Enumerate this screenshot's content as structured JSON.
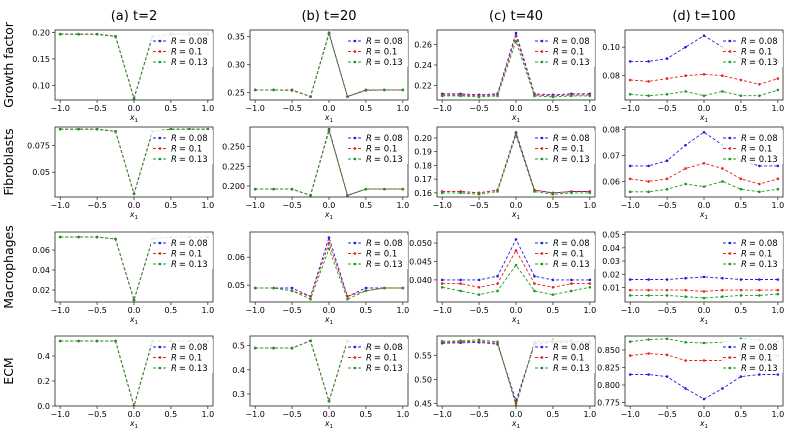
{
  "chart_data": {
    "type": "line",
    "columns": [
      "(a) t=2",
      "(b) t=20",
      "(c) t=40",
      "(d) t=100"
    ],
    "rows": [
      "Growth factor",
      "Fibroblasts",
      "Macrophages",
      "ECM"
    ],
    "x": [
      -1.0,
      -0.75,
      -0.5,
      -0.25,
      0.0,
      0.25,
      0.5,
      0.75,
      1.0
    ],
    "xlabel_main": "x",
    "xlabel_sub": "1",
    "xticks": [
      -1.0,
      -0.5,
      0.0,
      0.5,
      1.0
    ],
    "xtick_labels": [
      "−1.0",
      "−0.5",
      "0.0",
      "0.5",
      "1.0"
    ],
    "series_names": [
      "R = 0.08",
      "R = 0.1",
      "R = 0.13"
    ],
    "legend_symbol": "R",
    "legend_values": [
      "= 0.08",
      "= 0.1",
      "= 0.13"
    ],
    "series_colors": [
      "#1f1fe8",
      "#e8231f",
      "#1a9a1a"
    ],
    "legend_position": "top-right",
    "panels": [
      {
        "row": 0,
        "col": 0,
        "ylim": [
          0.072,
          0.205
        ],
        "yticks": [
          0.1,
          0.15,
          0.2
        ],
        "ytick_labels": [
          "0.10",
          "0.15",
          "0.20"
        ],
        "series": [
          [
            0.197,
            0.197,
            0.197,
            0.193,
            0.075,
            0.193,
            0.197,
            0.197,
            0.197
          ],
          [
            0.197,
            0.197,
            0.197,
            0.193,
            0.075,
            0.193,
            0.197,
            0.197,
            0.197
          ],
          [
            0.197,
            0.197,
            0.197,
            0.193,
            0.075,
            0.193,
            0.197,
            0.197,
            0.197
          ]
        ]
      },
      {
        "row": 0,
        "col": 1,
        "ylim": [
          0.237,
          0.362
        ],
        "yticks": [
          0.25,
          0.3,
          0.35
        ],
        "ytick_labels": [
          "0.25",
          "0.30",
          "0.35"
        ],
        "series": [
          [
            0.255,
            0.255,
            0.255,
            0.243,
            0.357,
            0.243,
            0.255,
            0.255,
            0.255
          ],
          [
            0.255,
            0.255,
            0.255,
            0.243,
            0.356,
            0.243,
            0.255,
            0.255,
            0.255
          ],
          [
            0.255,
            0.255,
            0.254,
            0.243,
            0.355,
            0.243,
            0.254,
            0.255,
            0.255
          ]
        ]
      },
      {
        "row": 0,
        "col": 2,
        "ylim": [
          0.206,
          0.274
        ],
        "yticks": [
          0.22,
          0.24,
          0.26
        ],
        "ytick_labels": [
          "0.22",
          "0.24",
          "0.26"
        ],
        "series": [
          [
            0.212,
            0.212,
            0.211,
            0.212,
            0.271,
            0.212,
            0.211,
            0.212,
            0.212
          ],
          [
            0.211,
            0.211,
            0.21,
            0.211,
            0.268,
            0.211,
            0.21,
            0.211,
            0.211
          ],
          [
            0.21,
            0.21,
            0.209,
            0.21,
            0.263,
            0.21,
            0.209,
            0.21,
            0.21
          ]
        ]
      },
      {
        "row": 0,
        "col": 3,
        "ylim": [
          0.063,
          0.112
        ],
        "yticks": [
          0.08,
          0.1
        ],
        "ytick_labels": [
          "0.08",
          "0.10"
        ],
        "series": [
          [
            0.09,
            0.09,
            0.092,
            0.1,
            0.108,
            0.1,
            0.092,
            0.09,
            0.09
          ],
          [
            0.077,
            0.076,
            0.078,
            0.08,
            0.081,
            0.08,
            0.077,
            0.074,
            0.078
          ],
          [
            0.067,
            0.066,
            0.067,
            0.069,
            0.066,
            0.069,
            0.066,
            0.066,
            0.07
          ]
        ]
      },
      {
        "row": 1,
        "col": 0,
        "ylim": [
          0.027,
          0.092
        ],
        "yticks": [
          0.05,
          0.075
        ],
        "ytick_labels": [
          "0.05",
          "0.075"
        ],
        "series": [
          [
            0.09,
            0.09,
            0.09,
            0.088,
            0.03,
            0.088,
            0.09,
            0.09,
            0.09
          ],
          [
            0.09,
            0.09,
            0.09,
            0.088,
            0.03,
            0.088,
            0.09,
            0.09,
            0.09
          ],
          [
            0.09,
            0.09,
            0.09,
            0.088,
            0.03,
            0.088,
            0.09,
            0.09,
            0.09
          ]
        ]
      },
      {
        "row": 1,
        "col": 1,
        "ylim": [
          0.186,
          0.275
        ],
        "yticks": [
          0.2,
          0.225,
          0.25
        ],
        "ytick_labels": [
          "0.200",
          "0.225",
          "0.250"
        ],
        "series": [
          [
            0.196,
            0.196,
            0.196,
            0.188,
            0.272,
            0.188,
            0.196,
            0.196,
            0.196
          ],
          [
            0.196,
            0.196,
            0.196,
            0.188,
            0.271,
            0.188,
            0.196,
            0.196,
            0.196
          ],
          [
            0.196,
            0.196,
            0.196,
            0.188,
            0.27,
            0.188,
            0.196,
            0.196,
            0.196
          ]
        ]
      },
      {
        "row": 1,
        "col": 2,
        "ylim": [
          0.157,
          0.208
        ],
        "yticks": [
          0.16,
          0.17,
          0.18,
          0.19,
          0.2
        ],
        "ytick_labels": [
          "0.16",
          "0.17",
          "0.18",
          "0.19",
          "0.20"
        ],
        "series": [
          [
            0.161,
            0.161,
            0.16,
            0.162,
            0.204,
            0.162,
            0.16,
            0.161,
            0.161
          ],
          [
            0.161,
            0.161,
            0.16,
            0.162,
            0.203,
            0.162,
            0.16,
            0.161,
            0.161
          ],
          [
            0.16,
            0.16,
            0.159,
            0.161,
            0.202,
            0.161,
            0.159,
            0.16,
            0.16
          ]
        ]
      },
      {
        "row": 1,
        "col": 3,
        "ylim": [
          0.054,
          0.081
        ],
        "yticks": [
          0.06,
          0.07,
          0.08
        ],
        "ytick_labels": [
          "0.06",
          "0.07",
          "0.08"
        ],
        "series": [
          [
            0.066,
            0.066,
            0.068,
            0.074,
            0.079,
            0.074,
            0.068,
            0.066,
            0.066
          ],
          [
            0.061,
            0.06,
            0.061,
            0.065,
            0.067,
            0.065,
            0.061,
            0.059,
            0.061
          ],
          [
            0.056,
            0.056,
            0.057,
            0.059,
            0.058,
            0.06,
            0.057,
            0.056,
            0.057
          ]
        ]
      },
      {
        "row": 2,
        "col": 0,
        "ylim": [
          0.008,
          0.078
        ],
        "yticks": [
          0.02,
          0.04,
          0.06
        ],
        "ytick_labels": [
          "0.02",
          "0.04",
          "0.06"
        ],
        "series": [
          [
            0.073,
            0.073,
            0.073,
            0.071,
            0.01,
            0.071,
            0.073,
            0.073,
            0.073
          ],
          [
            0.073,
            0.073,
            0.073,
            0.071,
            0.01,
            0.071,
            0.073,
            0.073,
            0.073
          ],
          [
            0.073,
            0.073,
            0.073,
            0.071,
            0.01,
            0.071,
            0.073,
            0.073,
            0.073
          ]
        ]
      },
      {
        "row": 2,
        "col": 1,
        "ylim": [
          0.044,
          0.069
        ],
        "yticks": [
          0.05,
          0.06
        ],
        "ytick_labels": [
          "0.05",
          "0.06"
        ],
        "series": [
          [
            0.049,
            0.049,
            0.049,
            0.046,
            0.067,
            0.046,
            0.049,
            0.049,
            0.049
          ],
          [
            0.049,
            0.049,
            0.048,
            0.046,
            0.065,
            0.046,
            0.048,
            0.049,
            0.049
          ],
          [
            0.049,
            0.049,
            0.048,
            0.045,
            0.063,
            0.045,
            0.048,
            0.049,
            0.049
          ]
        ]
      },
      {
        "row": 2,
        "col": 2,
        "ylim": [
          0.034,
          0.053
        ],
        "yticks": [
          0.04,
          0.045,
          0.05
        ],
        "ytick_labels": [
          "0.040",
          "0.045",
          "0.050"
        ],
        "series": [
          [
            0.04,
            0.04,
            0.04,
            0.041,
            0.051,
            0.041,
            0.04,
            0.04,
            0.04
          ],
          [
            0.039,
            0.039,
            0.038,
            0.039,
            0.048,
            0.039,
            0.038,
            0.039,
            0.039
          ],
          [
            0.038,
            0.037,
            0.036,
            0.037,
            0.044,
            0.037,
            0.036,
            0.037,
            0.038
          ]
        ]
      },
      {
        "row": 2,
        "col": 3,
        "ylim": [
          -0.001,
          0.052
        ],
        "yticks": [
          0.01,
          0.02,
          0.03,
          0.04,
          0.05
        ],
        "ytick_labels": [
          "0.01",
          "0.02",
          "0.03",
          "0.04",
          "0.05"
        ],
        "series": [
          [
            0.016,
            0.016,
            0.016,
            0.017,
            0.018,
            0.017,
            0.016,
            0.016,
            0.016
          ],
          [
            0.008,
            0.008,
            0.008,
            0.008,
            0.007,
            0.008,
            0.008,
            0.008,
            0.008
          ],
          [
            0.004,
            0.004,
            0.004,
            0.003,
            0.002,
            0.003,
            0.004,
            0.004,
            0.005
          ]
        ]
      },
      {
        "row": 3,
        "col": 0,
        "ylim": [
          0.0,
          0.56
        ],
        "yticks": [
          0.0,
          0.2,
          0.4
        ],
        "ytick_labels": [
          "0.0",
          "0.2",
          "0.4"
        ],
        "series": [
          [
            0.52,
            0.52,
            0.52,
            0.52,
            0.0,
            0.52,
            0.52,
            0.52,
            0.52
          ],
          [
            0.52,
            0.52,
            0.52,
            0.52,
            0.0,
            0.52,
            0.52,
            0.52,
            0.52
          ],
          [
            0.52,
            0.52,
            0.52,
            0.52,
            0.0,
            0.52,
            0.52,
            0.52,
            0.52
          ]
        ]
      },
      {
        "row": 3,
        "col": 1,
        "ylim": [
          0.25,
          0.54
        ],
        "yticks": [
          0.3,
          0.4,
          0.5
        ],
        "ytick_labels": [
          "0.3",
          "0.4",
          "0.5"
        ],
        "series": [
          [
            0.49,
            0.49,
            0.49,
            0.52,
            0.27,
            0.52,
            0.49,
            0.49,
            0.49
          ],
          [
            0.49,
            0.49,
            0.49,
            0.52,
            0.27,
            0.52,
            0.49,
            0.49,
            0.49
          ],
          [
            0.49,
            0.49,
            0.49,
            0.52,
            0.27,
            0.52,
            0.49,
            0.49,
            0.49
          ]
        ]
      },
      {
        "row": 3,
        "col": 2,
        "ylim": [
          0.445,
          0.59
        ],
        "yticks": [
          0.45,
          0.5,
          0.55
        ],
        "ytick_labels": [
          "0.45",
          "0.50",
          "0.55"
        ],
        "series": [
          [
            0.575,
            0.576,
            0.577,
            0.573,
            0.456,
            0.573,
            0.577,
            0.576,
            0.575
          ],
          [
            0.577,
            0.578,
            0.579,
            0.575,
            0.451,
            0.575,
            0.579,
            0.578,
            0.577
          ],
          [
            0.579,
            0.58,
            0.582,
            0.578,
            0.446,
            0.578,
            0.582,
            0.58,
            0.579
          ]
        ]
      },
      {
        "row": 3,
        "col": 3,
        "ylim": [
          0.77,
          0.87
        ],
        "yticks": [
          0.775,
          0.8,
          0.825,
          0.85
        ],
        "ytick_labels": [
          "0.775",
          "0.800",
          "0.825",
          "0.850"
        ],
        "series": [
          [
            0.815,
            0.815,
            0.812,
            0.795,
            0.78,
            0.795,
            0.812,
            0.815,
            0.815
          ],
          [
            0.842,
            0.845,
            0.843,
            0.835,
            0.835,
            0.835,
            0.843,
            0.845,
            0.842
          ],
          [
            0.862,
            0.865,
            0.866,
            0.861,
            0.86,
            0.861,
            0.866,
            0.864,
            0.862
          ]
        ]
      }
    ]
  }
}
